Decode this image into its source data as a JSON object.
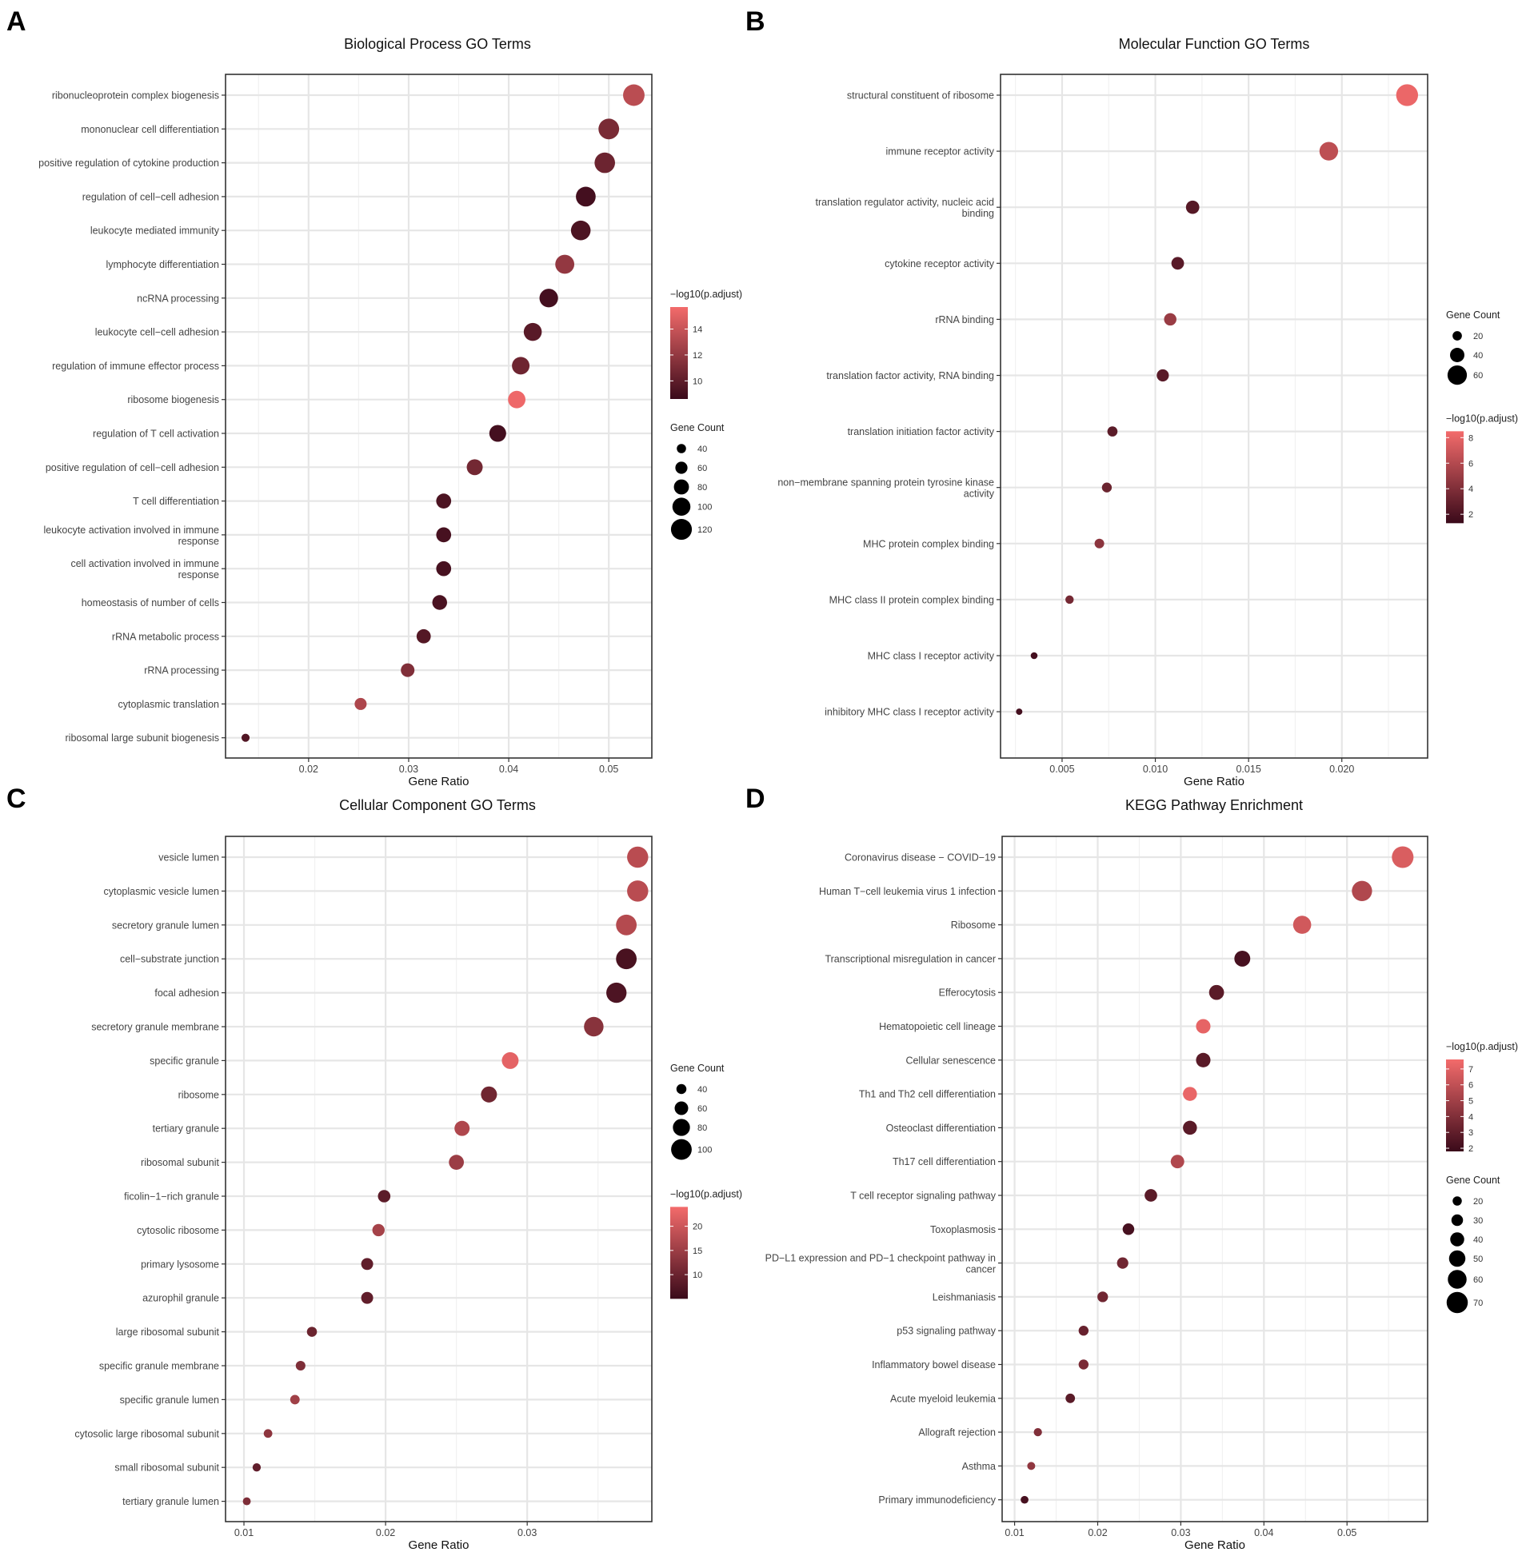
{
  "colors": {
    "low": "#3a0a1a",
    "high": "#f36b6b",
    "grid": "#e6e6e6",
    "frame": "#333333"
  },
  "legend_labels": {
    "size_title": "Gene Count",
    "color_title": "−log10(p.adjust)"
  },
  "chart_data": [
    {
      "type": "scatter",
      "panel_letter": "A",
      "title": "Biological Process GO Terms",
      "xlabel": "Gene Ratio",
      "ylabel": "",
      "xlim": [
        0.0117,
        0.0543
      ],
      "xticks": [
        0.02,
        0.03,
        0.04,
        0.05
      ],
      "xtick_labels": [
        "0.02",
        "0.03",
        "0.04",
        "0.05"
      ],
      "legend_order": [
        "color",
        "size"
      ],
      "color_scale": {
        "min": 8.6,
        "max": 15.7,
        "ticks": [
          10,
          12,
          14
        ],
        "tick_labels": [
          "10",
          "12",
          "14"
        ]
      },
      "size_scale": {
        "min": 15,
        "max": 130,
        "ticks": [
          40,
          60,
          80,
          100,
          120
        ],
        "tick_labels": [
          "40",
          "60",
          "80",
          "100",
          "120"
        ]
      },
      "points": [
        {
          "term": "ribonucleoprotein complex biogenesis",
          "gene_ratio": 0.0525,
          "count": 124,
          "neg_log10_padj": 13.5
        },
        {
          "term": "mononuclear cell differentiation",
          "gene_ratio": 0.05,
          "count": 118,
          "neg_log10_padj": 11.0
        },
        {
          "term": "positive regulation of cytokine production",
          "gene_ratio": 0.0496,
          "count": 117,
          "neg_log10_padj": 10.5
        },
        {
          "term": "regulation of cell−cell adhesion",
          "gene_ratio": 0.0477,
          "count": 112,
          "neg_log10_padj": 9.0
        },
        {
          "term": "leukocyte mediated immunity",
          "gene_ratio": 0.0472,
          "count": 111,
          "neg_log10_padj": 9.3
        },
        {
          "term": "lymphocyte differentiation",
          "gene_ratio": 0.0456,
          "count": 107,
          "neg_log10_padj": 12.0
        },
        {
          "term": "ncRNA processing",
          "gene_ratio": 0.044,
          "count": 104,
          "neg_log10_padj": 9.0
        },
        {
          "term": "leukocyte cell−cell adhesion",
          "gene_ratio": 0.0424,
          "count": 100,
          "neg_log10_padj": 9.8
        },
        {
          "term": "regulation of immune effector process",
          "gene_ratio": 0.0412,
          "count": 97,
          "neg_log10_padj": 10.6
        },
        {
          "term": "ribosome biogenesis",
          "gene_ratio": 0.0408,
          "count": 96,
          "neg_log10_padj": 15.5
        },
        {
          "term": "regulation of T cell activation",
          "gene_ratio": 0.0389,
          "count": 92,
          "neg_log10_padj": 9.0
        },
        {
          "term": "positive regulation of cell−cell adhesion",
          "gene_ratio": 0.0366,
          "count": 86,
          "neg_log10_padj": 10.8
        },
        {
          "term": "T cell differentiation",
          "gene_ratio": 0.0335,
          "count": 79,
          "neg_log10_padj": 9.3
        },
        {
          "term": "leukocyte activation involved in immune response",
          "gene_ratio": 0.0335,
          "count": 79,
          "neg_log10_padj": 9.1
        },
        {
          "term": "cell activation involved in immune response",
          "gene_ratio": 0.0335,
          "count": 79,
          "neg_log10_padj": 9.1
        },
        {
          "term": "homeostasis of number of cells",
          "gene_ratio": 0.0331,
          "count": 78,
          "neg_log10_padj": 9.2
        },
        {
          "term": "rRNA metabolic process",
          "gene_ratio": 0.0315,
          "count": 74,
          "neg_log10_padj": 9.6
        },
        {
          "term": "rRNA processing",
          "gene_ratio": 0.0299,
          "count": 70,
          "neg_log10_padj": 11.3
        },
        {
          "term": "cytoplasmic translation",
          "gene_ratio": 0.0252,
          "count": 59,
          "neg_log10_padj": 13.0
        },
        {
          "term": "ribosomal large subunit biogenesis",
          "gene_ratio": 0.0137,
          "count": 32,
          "neg_log10_padj": 9.5
        }
      ]
    },
    {
      "type": "scatter",
      "panel_letter": "B",
      "title": "Molecular Function GO Terms",
      "xlabel": "Gene Ratio",
      "ylabel": "",
      "xlim": [
        0.0017,
        0.0246
      ],
      "xticks": [
        0.005,
        0.01,
        0.015,
        0.02
      ],
      "xtick_labels": [
        "0.005",
        "0.010",
        "0.015",
        "0.020"
      ],
      "legend_order": [
        "size",
        "color"
      ],
      "color_scale": {
        "min": 1.3,
        "max": 8.5,
        "ticks": [
          2,
          4,
          6,
          8
        ],
        "tick_labels": [
          "2",
          "4",
          "6",
          "8"
        ]
      },
      "size_scale": {
        "min": 5,
        "max": 72,
        "ticks": [
          20,
          40,
          60
        ],
        "tick_labels": [
          "20",
          "40",
          "60"
        ]
      },
      "points": [
        {
          "term": "structural constituent of ribosome",
          "gene_ratio": 0.0235,
          "count": 70,
          "neg_log10_padj": 8.2
        },
        {
          "term": "immune receptor activity",
          "gene_ratio": 0.0193,
          "count": 57,
          "neg_log10_padj": 6.4
        },
        {
          "term": "translation regulator activity, nucleic acid binding",
          "gene_ratio": 0.012,
          "count": 36,
          "neg_log10_padj": 2.4
        },
        {
          "term": "cytokine receptor activity",
          "gene_ratio": 0.0112,
          "count": 33,
          "neg_log10_padj": 2.5
        },
        {
          "term": "rRNA binding",
          "gene_ratio": 0.0108,
          "count": 32,
          "neg_log10_padj": 5.0
        },
        {
          "term": "translation factor activity, RNA binding",
          "gene_ratio": 0.0104,
          "count": 31,
          "neg_log10_padj": 2.5
        },
        {
          "term": "translation initiation factor activity",
          "gene_ratio": 0.0077,
          "count": 23,
          "neg_log10_padj": 2.6
        },
        {
          "term": "non−membrane spanning protein tyrosine kinase activity",
          "gene_ratio": 0.0074,
          "count": 22,
          "neg_log10_padj": 3.2
        },
        {
          "term": "MHC protein complex binding",
          "gene_ratio": 0.007,
          "count": 21,
          "neg_log10_padj": 4.5
        },
        {
          "term": "MHC class II protein complex binding",
          "gene_ratio": 0.0054,
          "count": 16,
          "neg_log10_padj": 3.6
        },
        {
          "term": "MHC class I receptor activity",
          "gene_ratio": 0.0035,
          "count": 10,
          "neg_log10_padj": 1.7
        },
        {
          "term": "inhibitory MHC class I receptor activity",
          "gene_ratio": 0.0027,
          "count": 8,
          "neg_log10_padj": 1.7
        }
      ]
    },
    {
      "type": "scatter",
      "panel_letter": "C",
      "title": "Cellular Component GO Terms",
      "xlabel": "Gene Ratio",
      "ylabel": "",
      "xlim": [
        0.0087,
        0.0388
      ],
      "xticks": [
        0.01,
        0.02,
        0.03
      ],
      "xtick_labels": [
        "0.01",
        "0.02",
        "0.03"
      ],
      "legend_order": [
        "size",
        "color"
      ],
      "color_scale": {
        "min": 5,
        "max": 24,
        "ticks": [
          10,
          15,
          20
        ],
        "tick_labels": [
          "10",
          "15",
          "20"
        ]
      },
      "size_scale": {
        "min": 15,
        "max": 110,
        "ticks": [
          40,
          60,
          80,
          100
        ],
        "tick_labels": [
          "40",
          "60",
          "80",
          "100"
        ]
      },
      "points": [
        {
          "term": "vesicle lumen",
          "gene_ratio": 0.0378,
          "count": 103,
          "neg_log10_padj": 18.0
        },
        {
          "term": "cytoplasmic vesicle lumen",
          "gene_ratio": 0.0378,
          "count": 103,
          "neg_log10_padj": 18.0
        },
        {
          "term": "secretory granule lumen",
          "gene_ratio": 0.037,
          "count": 100,
          "neg_log10_padj": 17.5
        },
        {
          "term": "cell−substrate junction",
          "gene_ratio": 0.037,
          "count": 100,
          "neg_log10_padj": 6.5
        },
        {
          "term": "focal adhesion",
          "gene_ratio": 0.0363,
          "count": 98,
          "neg_log10_padj": 7.0
        },
        {
          "term": "secretory granule membrane",
          "gene_ratio": 0.0347,
          "count": 94,
          "neg_log10_padj": 13.0
        },
        {
          "term": "specific granule",
          "gene_ratio": 0.0288,
          "count": 78,
          "neg_log10_padj": 22.5
        },
        {
          "term": "ribosome",
          "gene_ratio": 0.0273,
          "count": 74,
          "neg_log10_padj": 10.5
        },
        {
          "term": "tertiary granule",
          "gene_ratio": 0.0254,
          "count": 69,
          "neg_log10_padj": 17.0
        },
        {
          "term": "ribosomal subunit",
          "gene_ratio": 0.025,
          "count": 68,
          "neg_log10_padj": 15.0
        },
        {
          "term": "ficolin−1−rich granule",
          "gene_ratio": 0.0199,
          "count": 54,
          "neg_log10_padj": 8.5
        },
        {
          "term": "cytosolic ribosome",
          "gene_ratio": 0.0195,
          "count": 53,
          "neg_log10_padj": 16.0
        },
        {
          "term": "primary lysosome",
          "gene_ratio": 0.0187,
          "count": 51,
          "neg_log10_padj": 9.0
        },
        {
          "term": "azurophil granule",
          "gene_ratio": 0.0187,
          "count": 51,
          "neg_log10_padj": 9.0
        },
        {
          "term": "large ribosomal subunit",
          "gene_ratio": 0.0148,
          "count": 40,
          "neg_log10_padj": 10.0
        },
        {
          "term": "specific granule membrane",
          "gene_ratio": 0.014,
          "count": 38,
          "neg_log10_padj": 12.0
        },
        {
          "term": "specific granule lumen",
          "gene_ratio": 0.0136,
          "count": 37,
          "neg_log10_padj": 15.5
        },
        {
          "term": "cytosolic large ribosomal subunit",
          "gene_ratio": 0.0117,
          "count": 32,
          "neg_log10_padj": 13.5
        },
        {
          "term": "small ribosomal subunit",
          "gene_ratio": 0.0109,
          "count": 30,
          "neg_log10_padj": 9.0
        },
        {
          "term": "tertiary granule lumen",
          "gene_ratio": 0.0102,
          "count": 28,
          "neg_log10_padj": 12.0
        }
      ]
    },
    {
      "type": "scatter",
      "panel_letter": "D",
      "title": "KEGG Pathway Enrichment",
      "xlabel": "Gene Ratio",
      "ylabel": "",
      "xlim": [
        0.0085,
        0.0597
      ],
      "xticks": [
        0.01,
        0.02,
        0.03,
        0.04,
        0.05
      ],
      "xtick_labels": [
        "0.01",
        "0.02",
        "0.03",
        "0.04",
        "0.05"
      ],
      "legend_order": [
        "color",
        "size"
      ],
      "color_scale": {
        "min": 1.8,
        "max": 7.6,
        "ticks": [
          2,
          3,
          4,
          5,
          6,
          7
        ],
        "tick_labels": [
          "2",
          "3",
          "4",
          "5",
          "6",
          "7"
        ]
      },
      "size_scale": {
        "min": 5,
        "max": 75,
        "ticks": [
          20,
          30,
          40,
          50,
          60,
          70
        ],
        "tick_labels": [
          "20",
          "30",
          "40",
          "50",
          "60",
          "70"
        ]
      },
      "points": [
        {
          "term": "Coronavirus disease − COVID−19",
          "gene_ratio": 0.0567,
          "count": 72,
          "neg_log10_padj": 6.8
        },
        {
          "term": "Human T−cell leukemia virus 1 infection",
          "gene_ratio": 0.0518,
          "count": 66,
          "neg_log10_padj": 5.5
        },
        {
          "term": "Ribosome",
          "gene_ratio": 0.0446,
          "count": 57,
          "neg_log10_padj": 6.5
        },
        {
          "term": "Transcriptional misregulation in cancer",
          "gene_ratio": 0.0374,
          "count": 48,
          "neg_log10_padj": 2.2
        },
        {
          "term": "Efferocytosis",
          "gene_ratio": 0.0343,
          "count": 44,
          "neg_log10_padj": 2.8
        },
        {
          "term": "Hematopoietic cell lineage",
          "gene_ratio": 0.0327,
          "count": 42,
          "neg_log10_padj": 7.2
        },
        {
          "term": "Cellular senescence",
          "gene_ratio": 0.0327,
          "count": 42,
          "neg_log10_padj": 2.8
        },
        {
          "term": "Th1 and Th2 cell differentiation",
          "gene_ratio": 0.0311,
          "count": 40,
          "neg_log10_padj": 7.3
        },
        {
          "term": "Osteoclast differentiation",
          "gene_ratio": 0.0311,
          "count": 40,
          "neg_log10_padj": 2.8
        },
        {
          "term": "Th17 cell differentiation",
          "gene_ratio": 0.0296,
          "count": 38,
          "neg_log10_padj": 5.5
        },
        {
          "term": "T cell receptor signaling pathway",
          "gene_ratio": 0.0264,
          "count": 34,
          "neg_log10_padj": 2.8
        },
        {
          "term": "Toxoplasmosis",
          "gene_ratio": 0.0237,
          "count": 30,
          "neg_log10_padj": 2.2
        },
        {
          "term": "PD−L1 expression and PD−1 checkpoint pathway in cancer",
          "gene_ratio": 0.023,
          "count": 29,
          "neg_log10_padj": 3.5
        },
        {
          "term": "Leishmaniasis",
          "gene_ratio": 0.0206,
          "count": 26,
          "neg_log10_padj": 3.5
        },
        {
          "term": "p53 signaling pathway",
          "gene_ratio": 0.0183,
          "count": 23,
          "neg_log10_padj": 3.2
        },
        {
          "term": "Inflammatory bowel disease",
          "gene_ratio": 0.0183,
          "count": 23,
          "neg_log10_padj": 3.8
        },
        {
          "term": "Acute myeloid leukemia",
          "gene_ratio": 0.0167,
          "count": 21,
          "neg_log10_padj": 2.8
        },
        {
          "term": "Allograft rejection",
          "gene_ratio": 0.0128,
          "count": 16,
          "neg_log10_padj": 4.0
        },
        {
          "term": "Asthma",
          "gene_ratio": 0.012,
          "count": 15,
          "neg_log10_padj": 4.5
        },
        {
          "term": "Primary immunodeficiency",
          "gene_ratio": 0.0112,
          "count": 14,
          "neg_log10_padj": 2.2
        }
      ]
    }
  ]
}
